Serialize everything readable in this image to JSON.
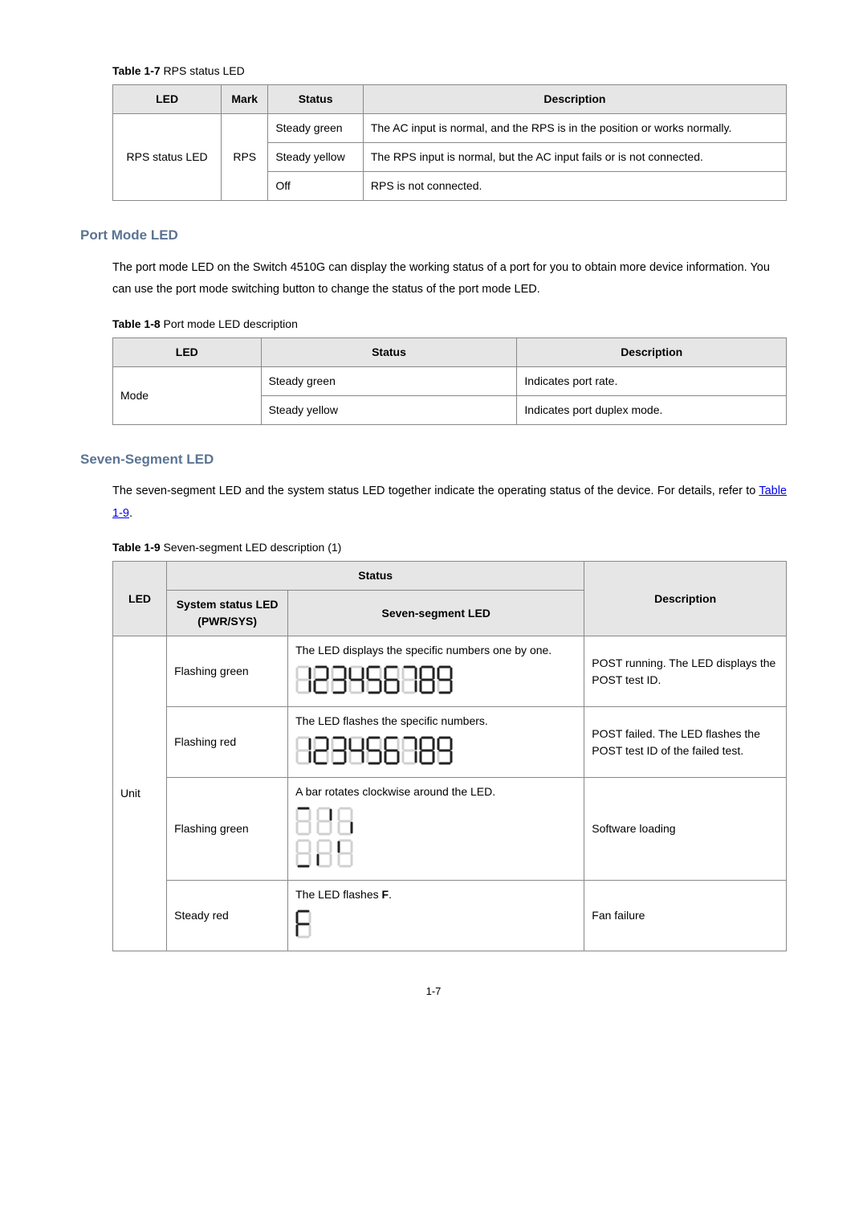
{
  "table17": {
    "captionBold": "Table 1-7",
    "captionRest": " RPS status LED",
    "columns": [
      "LED",
      "Mark",
      "Status",
      "Description"
    ],
    "ledName": "RPS status LED",
    "mark": "RPS",
    "rows": [
      {
        "status": "Steady green",
        "desc": "The AC input is normal, and the RPS is in the position or works normally."
      },
      {
        "status": "Steady yellow",
        "desc": "The RPS input is normal, but the AC input fails or is not connected."
      },
      {
        "status": "Off",
        "desc": "RPS is not connected."
      }
    ]
  },
  "portMode": {
    "heading": "Port Mode LED",
    "para": "The port mode LED on the Switch 4510G can display the working status of a port for you to obtain more device information. You can use the port mode switching button to change the status of the port mode LED."
  },
  "table18": {
    "captionBold": "Table 1-8",
    "captionRest": " Port mode LED description",
    "columns": [
      "LED",
      "Status",
      "Description"
    ],
    "ledName": "Mode",
    "rows": [
      {
        "status": "Steady green",
        "desc": "Indicates port rate."
      },
      {
        "status": "Steady yellow",
        "desc": "Indicates port duplex mode."
      }
    ]
  },
  "sevenSeg": {
    "heading": "Seven-Segment LED",
    "paraPrefix": "The seven-segment LED and the system status LED together indicate the operating status of the device. For details, refer to ",
    "paraLink": "Table 1-9",
    "paraSuffix": "."
  },
  "table19": {
    "captionBold": "Table 1-9",
    "captionRest": " Seven-segment LED description (1)",
    "h_LED": "LED",
    "h_Status": "Status",
    "h_SysStatus": "System status LED (PWR/SYS)",
    "h_SevenSeg": "Seven-segment LED",
    "h_Desc": "Description",
    "unit": "Unit",
    "rows": [
      {
        "sys": "Flashing green",
        "sevenPrefix": "The LED displays the specific numbers one by one.",
        "desc": "POST running. The LED displays the POST test ID."
      },
      {
        "sys": "Flashing red",
        "sevenPrefix": "The LED flashes the specific numbers.",
        "desc": "POST failed. The LED flashes the POST test ID of the failed test."
      },
      {
        "sys": "Flashing green",
        "sevenPrefix": "A bar rotates clockwise around the LED.",
        "desc": "Software loading"
      },
      {
        "sys": "Steady red",
        "sevenPrefixA": "The LED flashes ",
        "sevenBold": "F",
        "sevenPrefixB": ".",
        "desc": "Fan failure"
      }
    ]
  },
  "pageNumber": "1-7",
  "svgStyle": {
    "strokeOn": "#222222",
    "strokeOff": "#d0d0d0",
    "strokeWidth": 3
  }
}
